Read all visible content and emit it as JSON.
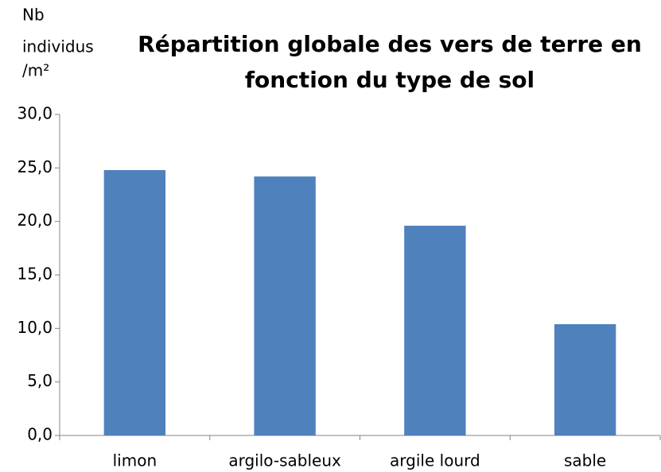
{
  "chart_data": {
    "type": "bar",
    "title": [
      "Répartition globale des vers de terre en",
      "fonction du type de sol"
    ],
    "ylabel": [
      "Nb",
      "individus",
      "/m²"
    ],
    "categories": [
      "limon",
      "argilo-sableux",
      "argile lourd",
      "sable"
    ],
    "values": [
      24.8,
      24.2,
      19.6,
      10.4
    ],
    "color": "#4f81bd",
    "ylim": [
      0,
      30
    ],
    "yticks": [
      {
        "value": 0,
        "label": "0,0"
      },
      {
        "value": 5,
        "label": "5,0"
      },
      {
        "value": 10,
        "label": "10,0"
      },
      {
        "value": 15,
        "label": "15,0"
      },
      {
        "value": 20,
        "label": "20,0"
      },
      {
        "value": 25,
        "label": "25,0"
      },
      {
        "value": 30,
        "label": "30,0"
      }
    ],
    "grid": false
  }
}
